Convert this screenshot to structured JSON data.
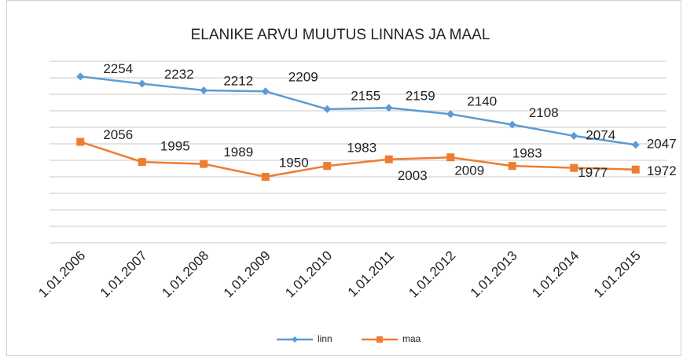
{
  "chart_data": {
    "type": "line",
    "title": "ELANIKE  ARVU MUUTUS LINNAS JA  MAAL",
    "categories": [
      "1.01.2006",
      "1.01.2007",
      "1.01.2008",
      "1.01.2009",
      "1.01.2010",
      "1.01.2011",
      "1.01.2012",
      "1.01.2013",
      "1.01.2014",
      "1.01.2015"
    ],
    "series": [
      {
        "name": "linn",
        "color": "#5b9bd5",
        "values": [
          2254,
          2232,
          2212,
          2209,
          2155,
          2159,
          2140,
          2108,
          2074,
          2047
        ]
      },
      {
        "name": "maa",
        "color": "#ed7d31",
        "values": [
          2056,
          1995,
          1989,
          1950,
          1983,
          2003,
          2009,
          1983,
          1977,
          1972
        ]
      }
    ],
    "ylim": [
      1750,
      2300
    ],
    "yticks": [
      1750,
      1800,
      1850,
      1900,
      1950,
      2000,
      2050,
      2100,
      2150,
      2200,
      2250,
      2300
    ],
    "grid": true,
    "legend": "bottom"
  }
}
